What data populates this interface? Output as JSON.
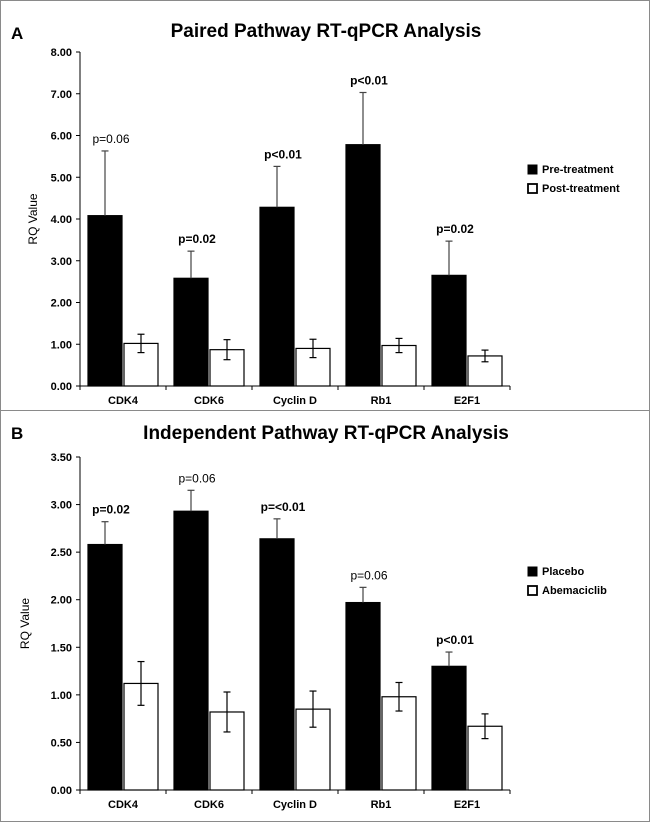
{
  "chart_data": [
    {
      "type": "bar",
      "panel_label": "A",
      "title": "Paired Pathway RT-qPCR Analysis",
      "xlabel": "",
      "ylabel": "RQ Value",
      "ylim": [
        0,
        8
      ],
      "yticks": [
        "0.00",
        "1.00",
        "2.00",
        "3.00",
        "4.00",
        "5.00",
        "6.00",
        "7.00",
        "8.00"
      ],
      "categories": [
        "CDK4",
        "CDK6",
        "Cyclin D",
        "Rb1",
        "E2F1"
      ],
      "series": [
        {
          "name": "Pre-treatment",
          "color": "#000000",
          "values": [
            4.08,
            2.58,
            4.28,
            5.78,
            2.65
          ],
          "errors": [
            1.55,
            0.65,
            0.98,
            1.25,
            0.82
          ]
        },
        {
          "name": "Post-treatment",
          "color": "#ffffff",
          "values": [
            1.02,
            0.87,
            0.9,
            0.97,
            0.72
          ],
          "errors": [
            0.22,
            0.24,
            0.22,
            0.17,
            0.14
          ]
        }
      ],
      "annotations": [
        {
          "text": "p=0.06",
          "bold": false
        },
        {
          "text": "p=0.02",
          "bold": true
        },
        {
          "text": "p<0.01",
          "bold": true
        },
        {
          "text": "p<0.01",
          "bold": true
        },
        {
          "text": "p=0.02",
          "bold": true
        }
      ],
      "legend": "right"
    },
    {
      "type": "bar",
      "panel_label": "B",
      "title": "Independent Pathway RT-qPCR Analysis",
      "xlabel": "",
      "ylabel": "RQ Value",
      "ylim": [
        0,
        3.5
      ],
      "yticks": [
        "0.00",
        "0.50",
        "1.00",
        "1.50",
        "2.00",
        "2.50",
        "3.00",
        "3.50"
      ],
      "categories": [
        "CDK4",
        "CDK6",
        "Cyclin D",
        "Rb1",
        "E2F1"
      ],
      "series": [
        {
          "name": "Placebo",
          "color": "#000000",
          "values": [
            2.58,
            2.93,
            2.64,
            1.97,
            1.3
          ],
          "errors": [
            0.24,
            0.22,
            0.21,
            0.16,
            0.15
          ]
        },
        {
          "name": "Abemaciclib",
          "color": "#ffffff",
          "values": [
            1.12,
            0.82,
            0.85,
            0.98,
            0.67
          ],
          "errors": [
            0.23,
            0.21,
            0.19,
            0.15,
            0.13
          ]
        }
      ],
      "annotations": [
        {
          "text": "p=0.02",
          "bold": true
        },
        {
          "text": "p=0.06",
          "bold": false
        },
        {
          "text": "p=<0.01",
          "bold": true
        },
        {
          "text": "p=0.06",
          "bold": false
        },
        {
          "text": "p<0.01",
          "bold": true
        }
      ],
      "legend": "right"
    }
  ]
}
